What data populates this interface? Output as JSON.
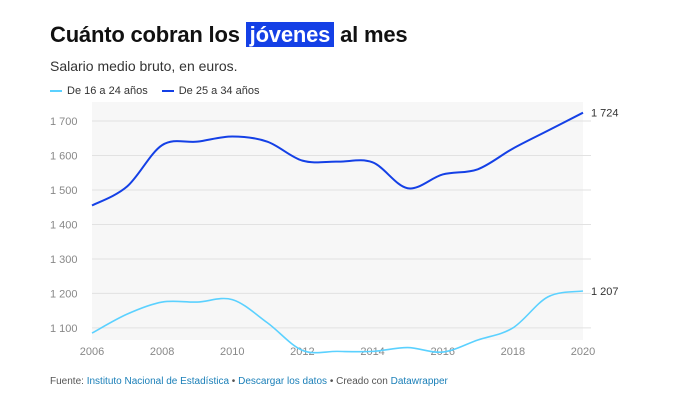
{
  "title_pre": "Cuánto cobran los",
  "title_highlight": "jóvenes",
  "title_post": "al mes",
  "subtitle": "Salario medio bruto, en euros.",
  "footer": {
    "source_label": "Fuente:",
    "source_link": "Instituto Nacional de Estadística",
    "sep": "•",
    "data_link": "Descargar los datos",
    "created_label": "Creado con",
    "tool_link": "Datawrapper"
  },
  "colors": {
    "light": "#5bd1ff",
    "dark": "#1440e6",
    "highlight": "#1440e6"
  },
  "chart_data": {
    "type": "line",
    "title": "Cuánto cobran los jóvenes al mes",
    "subtitle": "Salario medio bruto, en euros.",
    "x": [
      2006,
      2007,
      2008,
      2009,
      2010,
      2011,
      2012,
      2013,
      2014,
      2015,
      2016,
      2017,
      2018,
      2019,
      2020
    ],
    "xticks": [
      "2006",
      "2008",
      "2010",
      "2012",
      "2014",
      "2016",
      "2018",
      "2020"
    ],
    "yticks": [
      "1 100",
      "1 200",
      "1 300",
      "1 400",
      "1 500",
      "1 600",
      "1 700"
    ],
    "ylim": [
      1065,
      1755
    ],
    "grid": true,
    "legend_position": "top-left",
    "series": [
      {
        "name": "De 16 a 24 años",
        "color": "#5bd1ff",
        "end_label": "1 207",
        "values": [
          1085,
          1140,
          1175,
          1175,
          1182,
          1115,
          1035,
          1032,
          1032,
          1043,
          1030,
          1065,
          1100,
          1190,
          1207
        ]
      },
      {
        "name": "De 25 a 34 años",
        "color": "#1440e6",
        "end_label": "1 724",
        "values": [
          1455,
          1510,
          1630,
          1640,
          1655,
          1640,
          1585,
          1582,
          1580,
          1505,
          1545,
          1560,
          1620,
          1672,
          1724
        ]
      }
    ]
  }
}
